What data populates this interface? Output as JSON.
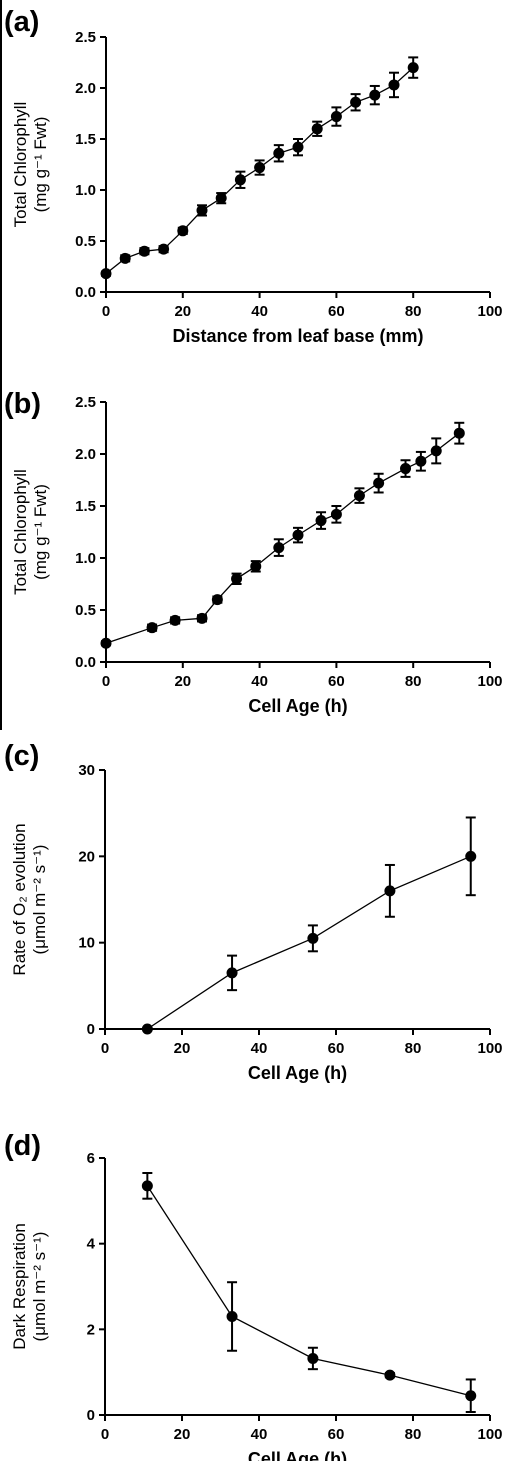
{
  "figure": {
    "panel_letters": [
      "(a)",
      "(b)",
      "(c)",
      "(d)"
    ]
  },
  "chart_data": [
    {
      "type": "line",
      "panel": "(a)",
      "xlabel": "Distance from leaf base (mm)",
      "ylabel_line1": "Total Chlorophyll",
      "ylabel_line2": "(mg g⁻¹ Fwt)",
      "xlim": [
        0,
        100
      ],
      "ylim": [
        0,
        2.5
      ],
      "xticks": [
        0,
        20,
        40,
        60,
        80,
        100
      ],
      "yticks": [
        0.0,
        0.5,
        1.0,
        1.5,
        2.0,
        2.5
      ],
      "ytick_labels": [
        "0.0",
        "0.5",
        "1.0",
        "1.5",
        "2.0",
        "2.5"
      ],
      "x": [
        0,
        5,
        10,
        15,
        20,
        25,
        30,
        35,
        40,
        45,
        50,
        55,
        60,
        65,
        70,
        75,
        80
      ],
      "y": [
        0.18,
        0.33,
        0.4,
        0.42,
        0.6,
        0.8,
        0.92,
        1.1,
        1.22,
        1.36,
        1.42,
        1.6,
        1.72,
        1.86,
        1.93,
        2.03,
        2.2
      ],
      "err": [
        0.02,
        0.03,
        0.03,
        0.03,
        0.03,
        0.05,
        0.05,
        0.08,
        0.07,
        0.08,
        0.08,
        0.07,
        0.09,
        0.08,
        0.09,
        0.12,
        0.1
      ]
    },
    {
      "type": "line",
      "panel": "(b)",
      "xlabel": "Cell Age (h)",
      "ylabel_line1": "Total Chlorophyll",
      "ylabel_line2": "(mg g⁻¹ Fwt)",
      "xlim": [
        0,
        100
      ],
      "ylim": [
        0,
        2.5
      ],
      "xticks": [
        0,
        20,
        40,
        60,
        80,
        100
      ],
      "yticks": [
        0.0,
        0.5,
        1.0,
        1.5,
        2.0,
        2.5
      ],
      "ytick_labels": [
        "0.0",
        "0.5",
        "1.0",
        "1.5",
        "2.0",
        "2.5"
      ],
      "x": [
        0,
        12,
        18,
        25,
        29,
        34,
        39,
        45,
        50,
        56,
        60,
        66,
        71,
        78,
        82,
        86,
        92
      ],
      "y": [
        0.18,
        0.33,
        0.4,
        0.42,
        0.6,
        0.8,
        0.92,
        1.1,
        1.22,
        1.36,
        1.42,
        1.6,
        1.72,
        1.86,
        1.93,
        2.03,
        2.2
      ],
      "err": [
        0.02,
        0.03,
        0.03,
        0.03,
        0.03,
        0.05,
        0.05,
        0.08,
        0.07,
        0.08,
        0.08,
        0.07,
        0.09,
        0.08,
        0.09,
        0.12,
        0.1
      ]
    },
    {
      "type": "line",
      "panel": "(c)",
      "xlabel": "Cell Age (h)",
      "ylabel_line1": "Rate of O₂ evolution",
      "ylabel_line2": "(μmol m⁻² s⁻¹)",
      "xlim": [
        0,
        100
      ],
      "ylim": [
        0,
        30
      ],
      "xticks": [
        0,
        20,
        40,
        60,
        80,
        100
      ],
      "yticks": [
        0,
        10,
        20,
        30
      ],
      "ytick_labels": [
        "0",
        "10",
        "20",
        "30"
      ],
      "x": [
        11,
        33,
        54,
        74,
        95
      ],
      "y": [
        0,
        6.5,
        10.5,
        16,
        20
      ],
      "err": [
        0,
        2.0,
        1.5,
        3.0,
        4.5
      ]
    },
    {
      "type": "line",
      "panel": "(d)",
      "xlabel": "Cell Age (h)",
      "ylabel_line1": "Dark Respiration",
      "ylabel_line2": "(μmol m⁻² s⁻¹)",
      "xlim": [
        0,
        100
      ],
      "ylim": [
        0,
        6
      ],
      "xticks": [
        0,
        20,
        40,
        60,
        80,
        100
      ],
      "yticks": [
        0,
        2,
        4,
        6
      ],
      "ytick_labels": [
        "0",
        "2",
        "4",
        "6"
      ],
      "x": [
        11,
        33,
        54,
        74,
        95
      ],
      "y": [
        5.35,
        2.3,
        1.32,
        0.93,
        0.45
      ],
      "err": [
        0.3,
        0.8,
        0.25,
        0.05,
        0.38
      ]
    }
  ]
}
